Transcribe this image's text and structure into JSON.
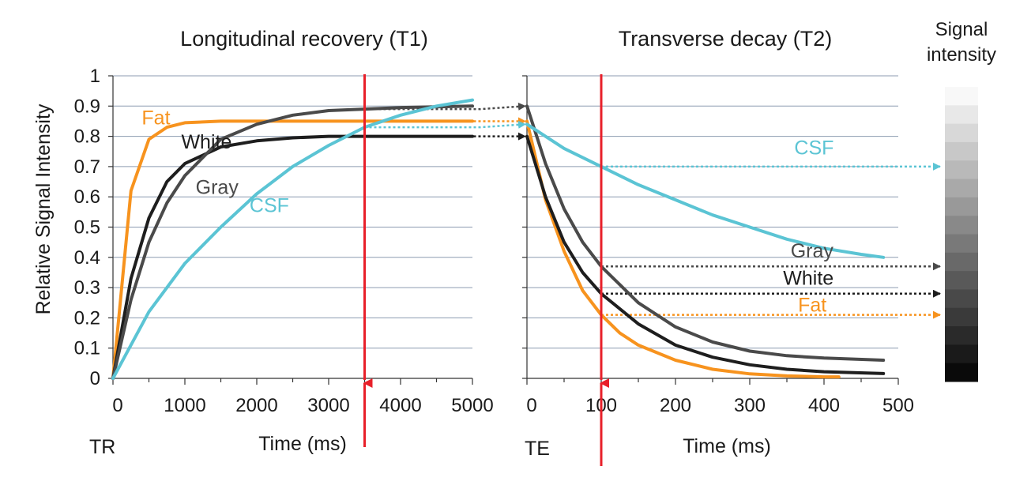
{
  "colors": {
    "fat": "#F7931E",
    "white": "#1e1e1e",
    "gray": "#4a4a4a",
    "csf": "#5BC4D4",
    "marker": "#E8202A",
    "grid": "#8c9bb0"
  },
  "y_axis": {
    "label": "Relative Signal Intensity",
    "ticks": [
      "0",
      "0.1",
      "0.2",
      "0.3",
      "0.4",
      "0.5",
      "0.6",
      "0.7",
      "0.8",
      "0.9",
      "1"
    ]
  },
  "scale": {
    "title": "Signal\nintensity",
    "title_lines": [
      "Signal",
      "intensity"
    ],
    "levels": 16
  },
  "chart_data": [
    {
      "type": "line",
      "title": "Longitudinal recovery (T1)",
      "xlabel": "Time (ms)",
      "param_label": "TR",
      "xlim": [
        0,
        5000
      ],
      "ylim": [
        0,
        1
      ],
      "x_ticks": [
        "0",
        "1000",
        "2000",
        "3000",
        "4000",
        "5000"
      ],
      "marker_x": 3500,
      "grid": true,
      "series": [
        {
          "name": "Fat",
          "color_key": "fat",
          "x": [
            0,
            250,
            500,
            750,
            1000,
            1500,
            2000,
            3000,
            4000,
            5000
          ],
          "y": [
            0,
            0.62,
            0.79,
            0.83,
            0.845,
            0.85,
            0.85,
            0.85,
            0.85,
            0.85
          ]
        },
        {
          "name": "White",
          "color_key": "white",
          "x": [
            0,
            250,
            500,
            750,
            1000,
            1500,
            2000,
            2500,
            3000,
            3500,
            4000,
            5000
          ],
          "y": [
            0,
            0.33,
            0.53,
            0.65,
            0.71,
            0.765,
            0.785,
            0.795,
            0.8,
            0.8,
            0.8,
            0.8
          ]
        },
        {
          "name": "Gray",
          "color_key": "gray",
          "x": [
            0,
            250,
            500,
            750,
            1000,
            1500,
            2000,
            2500,
            3000,
            3500,
            4000,
            5000
          ],
          "y": [
            0,
            0.26,
            0.45,
            0.58,
            0.67,
            0.79,
            0.84,
            0.87,
            0.885,
            0.89,
            0.895,
            0.9
          ]
        },
        {
          "name": "CSF",
          "color_key": "csf",
          "x": [
            0,
            500,
            1000,
            1500,
            2000,
            2500,
            3000,
            3500,
            4000,
            4500,
            5000
          ],
          "y": [
            0,
            0.22,
            0.38,
            0.5,
            0.61,
            0.7,
            0.77,
            0.83,
            0.87,
            0.9,
            0.92
          ]
        }
      ],
      "labels": [
        {
          "text": "Fat",
          "series": "Fat",
          "x": 400,
          "y": 0.84
        },
        {
          "text": "White",
          "series": "White",
          "x": 950,
          "y": 0.76
        },
        {
          "text": "Gray",
          "series": "Gray",
          "x": 1150,
          "y": 0.61
        },
        {
          "text": "CSF",
          "series": "CSF",
          "x": 1900,
          "y": 0.55
        }
      ]
    },
    {
      "type": "line",
      "title": "Transverse decay (T2)",
      "xlabel": "Time (ms)",
      "param_label": "TE",
      "xlim": [
        0,
        500
      ],
      "ylim": [
        0,
        1
      ],
      "x_ticks": [
        "0",
        "100",
        "200",
        "300",
        "400",
        "500"
      ],
      "marker_x": 100,
      "grid": true,
      "series": [
        {
          "name": "Fat",
          "color_key": "fat",
          "x": [
            0,
            25,
            50,
            75,
            100,
            125,
            150,
            200,
            250,
            300,
            350,
            400,
            420
          ],
          "y": [
            0.85,
            0.59,
            0.42,
            0.29,
            0.21,
            0.15,
            0.11,
            0.06,
            0.03,
            0.015,
            0.008,
            0.005,
            0.005
          ]
        },
        {
          "name": "White",
          "color_key": "white",
          "x": [
            0,
            25,
            50,
            75,
            100,
            150,
            200,
            250,
            300,
            350,
            400,
            480
          ],
          "y": [
            0.8,
            0.6,
            0.45,
            0.35,
            0.28,
            0.18,
            0.11,
            0.07,
            0.045,
            0.03,
            0.022,
            0.016
          ]
        },
        {
          "name": "Gray",
          "color_key": "gray",
          "x": [
            0,
            25,
            50,
            75,
            100,
            150,
            200,
            250,
            300,
            350,
            400,
            480
          ],
          "y": [
            0.9,
            0.71,
            0.56,
            0.45,
            0.37,
            0.25,
            0.17,
            0.12,
            0.09,
            0.075,
            0.067,
            0.06
          ]
        },
        {
          "name": "CSF",
          "color_key": "csf",
          "x": [
            0,
            50,
            100,
            150,
            200,
            250,
            300,
            350,
            400,
            450,
            480
          ],
          "y": [
            0.84,
            0.76,
            0.7,
            0.64,
            0.59,
            0.54,
            0.5,
            0.46,
            0.43,
            0.41,
            0.4
          ]
        }
      ],
      "labels": [
        {
          "text": "CSF",
          "series": "CSF",
          "x": 360,
          "y": 0.74
        },
        {
          "text": "Gray",
          "series": "Gray",
          "x": 355,
          "y": 0.4
        },
        {
          "text": "White",
          "series": "White",
          "x": 345,
          "y": 0.31
        },
        {
          "text": "Fat",
          "series": "Fat",
          "x": 365,
          "y": 0.22
        }
      ]
    }
  ],
  "arrows": [
    {
      "from": "t1",
      "series": "Gray",
      "style": "dotted"
    },
    {
      "from": "t1",
      "series": "Fat",
      "style": "dotted"
    },
    {
      "from": "t1",
      "series": "CSF",
      "style": "dotted"
    },
    {
      "from": "t1",
      "series": "White",
      "style": "dotted"
    },
    {
      "from": "t2",
      "series": "CSF",
      "style": "dotted"
    },
    {
      "from": "t2",
      "series": "Gray",
      "style": "dotted"
    },
    {
      "from": "t2",
      "series": "White",
      "style": "dotted"
    },
    {
      "from": "t2",
      "series": "Fat",
      "style": "dotted"
    }
  ]
}
